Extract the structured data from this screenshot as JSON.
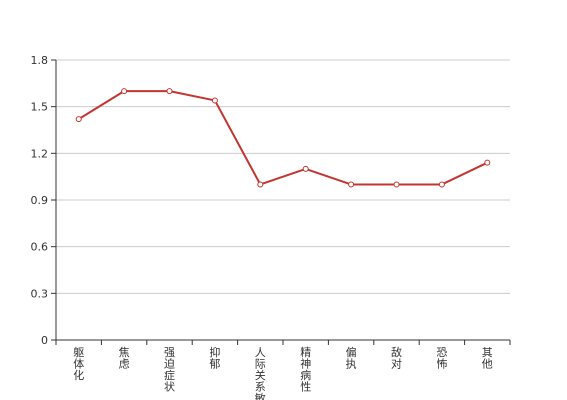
{
  "chart_data": {
    "type": "line",
    "categories": [
      "躯体化",
      "焦虑",
      "强迫症状",
      "抑郁",
      "人际关系敏感",
      "精神病性",
      "偏执",
      "敌对",
      "恐怖",
      "其他"
    ],
    "series": [
      {
        "values": [
          1.42,
          1.6,
          1.6,
          1.54,
          1.0,
          1.1,
          1.0,
          1.0,
          1.0,
          1.14
        ]
      }
    ],
    "ylim": [
      0,
      1.8
    ],
    "yticks": [
      "0",
      "0.3",
      "0.6",
      "0.9",
      "1.2",
      "1.5",
      "1.8"
    ],
    "grid": true,
    "colors": {
      "line": "#c23531",
      "marker_fill": "#ffffff",
      "grid": "#cccccc",
      "axis": "#333333"
    }
  }
}
